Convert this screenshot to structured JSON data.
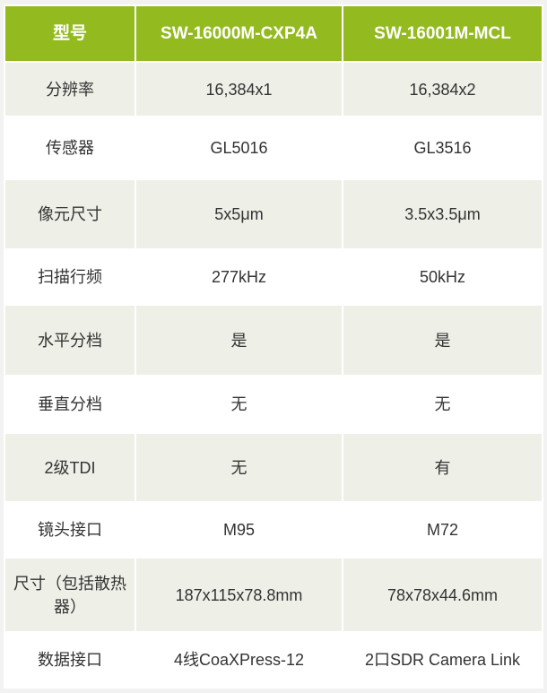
{
  "header": [
    "型号",
    "SW-16000M-CXP4A",
    "SW-16001M-MCL"
  ],
  "rows": [
    [
      "分辨率",
      "16,384x1",
      "16,384x2"
    ],
    [
      "传感器",
      "GL5016",
      "GL3516"
    ],
    [
      "像元尺寸",
      "5x5μm",
      "3.5x3.5μm"
    ],
    [
      "扫描行频",
      "277kHz",
      "50kHz"
    ],
    [
      "水平分档",
      "是",
      "是"
    ],
    [
      "垂直分档",
      "无",
      "无"
    ],
    [
      "2级TDI",
      "无",
      "有"
    ],
    [
      "镜头接口",
      "M95",
      "M72"
    ],
    [
      "尺寸（包括散热器）",
      "187x115x78.8mm",
      "78x78x44.6mm"
    ],
    [
      "数据接口",
      "4线CoaXPress-12",
      "2口SDR Camera Link"
    ]
  ],
  "colors": {
    "header": "#93bb1f",
    "stripe": "#eef0e8"
  }
}
